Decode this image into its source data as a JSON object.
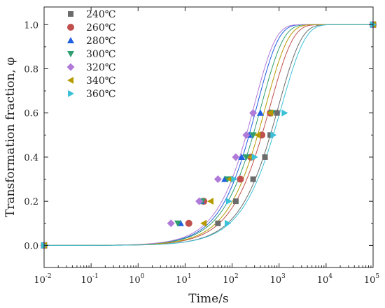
{
  "chart_data": {
    "type": "scatter",
    "xlabel": "Time/s",
    "ylabel": "Transformation fraction, φ",
    "x_scale": "log",
    "xlim": [
      0.01,
      100000
    ],
    "ylim": [
      -0.1,
      1.08
    ],
    "grid": false,
    "legend_position": "top-left",
    "x_ticks": [
      {
        "value": 0.01,
        "base": "10",
        "exp": "-2"
      },
      {
        "value": 0.1,
        "base": "10",
        "exp": "-1"
      },
      {
        "value": 1,
        "base": "10",
        "exp": "0"
      },
      {
        "value": 10,
        "base": "10",
        "exp": "1"
      },
      {
        "value": 100,
        "base": "10",
        "exp": "2"
      },
      {
        "value": 1000,
        "base": "10",
        "exp": "3"
      },
      {
        "value": 10000,
        "base": "10",
        "exp": "4"
      },
      {
        "value": 100000,
        "base": "10",
        "exp": "5"
      }
    ],
    "y_ticks": [
      {
        "value": 0.0,
        "label": "0.0"
      },
      {
        "value": 0.2,
        "label": "0.2"
      },
      {
        "value": 0.4,
        "label": "0.4"
      },
      {
        "value": 0.6,
        "label": "0.6"
      },
      {
        "value": 0.8,
        "label": "0.8"
      },
      {
        "value": 1.0,
        "label": "1.0"
      }
    ],
    "series": [
      {
        "name": "240℃",
        "marker": "square",
        "color": "#6b6b6b",
        "x": [
          0.01,
          50,
          120,
          280,
          500,
          650,
          900,
          100000
        ],
        "y": [
          0,
          0.1,
          0.2,
          0.3,
          0.4,
          0.5,
          0.6,
          1.0
        ],
        "fit_k": 0.9
      },
      {
        "name": "260℃",
        "marker": "circle",
        "color": "#c0504d",
        "x": [
          0.01,
          12,
          25,
          150,
          250,
          430,
          650,
          100000
        ],
        "y": [
          0,
          0.1,
          0.2,
          0.3,
          0.4,
          0.5,
          0.6,
          1.0
        ],
        "fit_k": 0.9
      },
      {
        "name": "280℃",
        "marker": "triangle-up",
        "color": "#1f5fe0",
        "x": [
          0.01,
          8,
          22,
          70,
          160,
          230,
          400,
          100000
        ],
        "y": [
          0,
          0.1,
          0.2,
          0.3,
          0.4,
          0.5,
          0.6,
          1.0
        ],
        "fit_k": 0.95
      },
      {
        "name": "300℃",
        "marker": "triangle-down",
        "color": "#2e9e6e",
        "x": [
          0.01,
          7,
          23,
          80,
          200,
          280,
          700,
          100000
        ],
        "y": [
          0,
          0.1,
          0.2,
          0.3,
          0.4,
          0.5,
          0.6,
          1.0
        ],
        "fit_k": 0.92
      },
      {
        "name": "320℃",
        "marker": "diamond",
        "color": "#b07ad8",
        "x": [
          0.01,
          5,
          20,
          50,
          120,
          200,
          280,
          100000
        ],
        "y": [
          0,
          0.1,
          0.2,
          0.3,
          0.4,
          0.5,
          0.6,
          1.0
        ],
        "fit_k": 0.95
      },
      {
        "name": "340℃",
        "marker": "triangle-left",
        "color": "#b59b00",
        "x": [
          0.01,
          25,
          35,
          90,
          250,
          350,
          650,
          100000
        ],
        "y": [
          0,
          0.1,
          0.2,
          0.3,
          0.4,
          0.5,
          0.6,
          1.0
        ],
        "fit_k": 0.92
      },
      {
        "name": "360℃",
        "marker": "triangle-right",
        "color": "#3bc0d8",
        "x": [
          0.01,
          80,
          85,
          110,
          300,
          750,
          1300,
          100000
        ],
        "y": [
          0,
          0.1,
          0.2,
          0.3,
          0.4,
          0.5,
          0.6,
          1.0
        ],
        "fit_k": 0.88
      }
    ]
  }
}
